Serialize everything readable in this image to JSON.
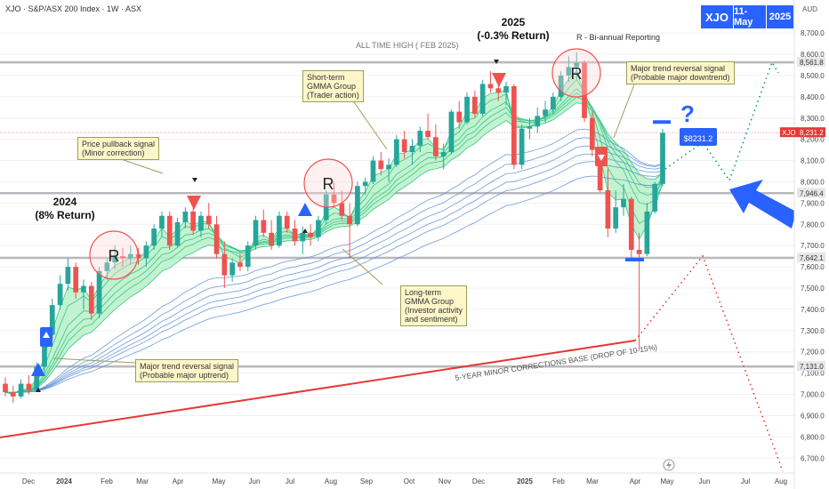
{
  "header": {
    "title": "XJO · S&P/ASX 200 Index · 1W · ASX",
    "currency": "AUD",
    "badges": [
      "XJO",
      "11-May",
      "2025"
    ],
    "badge_color": "#2962ff"
  },
  "chart_data": {
    "type": "candlestick",
    "y_ticks": [
      6700,
      6800,
      6900,
      7000,
      7100,
      7200,
      7300,
      7400,
      7500,
      7600,
      7700,
      7800,
      7900,
      8000,
      8100,
      8200,
      8300,
      8400,
      8500,
      8600,
      8700
    ],
    "y_range": [
      6630,
      8780
    ],
    "x_ticks": [
      "Dec",
      "2024",
      "Feb",
      "Mar",
      "Apr",
      "May",
      "Jun",
      "Jul",
      "Aug",
      "Sep",
      "Oct",
      "Nov",
      "Dec",
      "2025",
      "Feb",
      "Mar",
      "Apr",
      "May",
      "Jun",
      "Jul",
      "Aug"
    ],
    "level_lines": [
      {
        "label": "8,561.8",
        "value": 8561.8,
        "name": "all-time-high"
      },
      {
        "label": "7,946.4",
        "value": 7946.4,
        "name": "support-1"
      },
      {
        "label": "7,642.1",
        "value": 7642.1,
        "name": "support-2"
      },
      {
        "label": "7,131.0",
        "value": 7131.0,
        "name": "corrections-base"
      }
    ],
    "current_price_label": "8,231.2",
    "current_price": 8231.2,
    "current_ticker": "XJO",
    "projection_marker": "$8231.2",
    "colors": {
      "up": "#26a69a",
      "down": "#ef5350",
      "short_gmma": "#26c281",
      "long_gmma": "#5c8fd6",
      "base_line": "#e53935"
    },
    "candles": [
      [
        7050,
        7080,
        6990,
        7010
      ],
      [
        7010,
        7040,
        6960,
        6990
      ],
      [
        6990,
        7070,
        6980,
        7050
      ],
      [
        7050,
        7090,
        7000,
        7020
      ],
      [
        7020,
        7150,
        7010,
        7130
      ],
      [
        7130,
        7300,
        7100,
        7280
      ],
      [
        7280,
        7450,
        7260,
        7420
      ],
      [
        7420,
        7560,
        7400,
        7520
      ],
      [
        7520,
        7640,
        7490,
        7600
      ],
      [
        7600,
        7620,
        7450,
        7480
      ],
      [
        7480,
        7540,
        7400,
        7510
      ],
      [
        7510,
        7530,
        7350,
        7380
      ],
      [
        7380,
        7600,
        7360,
        7580
      ],
      [
        7580,
        7640,
        7540,
        7620
      ],
      [
        7620,
        7700,
        7590,
        7650
      ],
      [
        7650,
        7690,
        7600,
        7640
      ],
      [
        7640,
        7700,
        7610,
        7660
      ],
      [
        7660,
        7690,
        7610,
        7640
      ],
      [
        7640,
        7720,
        7600,
        7700
      ],
      [
        7700,
        7800,
        7680,
        7780
      ],
      [
        7780,
        7860,
        7740,
        7840
      ],
      [
        7840,
        7860,
        7680,
        7700
      ],
      [
        7700,
        7830,
        7690,
        7810
      ],
      [
        7810,
        7880,
        7780,
        7860
      ],
      [
        7860,
        7880,
        7750,
        7770
      ],
      [
        7770,
        7860,
        7740,
        7840
      ],
      [
        7840,
        7900,
        7780,
        7800
      ],
      [
        7800,
        7840,
        7640,
        7660
      ],
      [
        7660,
        7720,
        7500,
        7560
      ],
      [
        7560,
        7640,
        7530,
        7620
      ],
      [
        7620,
        7660,
        7580,
        7600
      ],
      [
        7600,
        7720,
        7580,
        7700
      ],
      [
        7700,
        7840,
        7680,
        7820
      ],
      [
        7820,
        7870,
        7740,
        7760
      ],
      [
        7760,
        7820,
        7680,
        7700
      ],
      [
        7700,
        7860,
        7690,
        7840
      ],
      [
        7840,
        7860,
        7760,
        7780
      ],
      [
        7780,
        7820,
        7700,
        7720
      ],
      [
        7720,
        7790,
        7660,
        7760
      ],
      [
        7760,
        7800,
        7700,
        7740
      ],
      [
        7740,
        7840,
        7720,
        7820
      ],
      [
        7820,
        7960,
        7800,
        7940
      ],
      [
        7940,
        8000,
        7880,
        7900
      ],
      [
        7900,
        7960,
        7820,
        7840
      ],
      [
        7840,
        7900,
        7640,
        7800
      ],
      [
        7800,
        8000,
        7790,
        7980
      ],
      [
        7980,
        8020,
        7940,
        8000
      ],
      [
        8000,
        8120,
        7990,
        8100
      ],
      [
        8100,
        8140,
        8030,
        8060
      ],
      [
        8060,
        8110,
        8000,
        8080
      ],
      [
        8080,
        8220,
        8070,
        8200
      ],
      [
        8200,
        8240,
        8110,
        8140
      ],
      [
        8140,
        8200,
        8080,
        8170
      ],
      [
        8170,
        8260,
        8140,
        8240
      ],
      [
        8240,
        8320,
        8200,
        8210
      ],
      [
        8210,
        8270,
        8100,
        8120
      ],
      [
        8120,
        8180,
        8060,
        8140
      ],
      [
        8140,
        8340,
        8130,
        8330
      ],
      [
        8330,
        8380,
        8250,
        8280
      ],
      [
        8280,
        8420,
        8270,
        8400
      ],
      [
        8400,
        8430,
        8300,
        8320
      ],
      [
        8320,
        8480,
        8310,
        8460
      ],
      [
        8460,
        8520,
        8420,
        8440
      ],
      [
        8440,
        8480,
        8380,
        8420
      ],
      [
        8420,
        8470,
        8360,
        8450
      ],
      [
        8450,
        8460,
        8060,
        8080
      ],
      [
        8080,
        8270,
        8060,
        8250
      ],
      [
        8250,
        8300,
        8200,
        8260
      ],
      [
        8260,
        8350,
        8230,
        8310
      ],
      [
        8310,
        8380,
        8280,
        8340
      ],
      [
        8340,
        8420,
        8320,
        8400
      ],
      [
        8400,
        8520,
        8380,
        8500
      ],
      [
        8500,
        8590,
        8470,
        8540
      ],
      [
        8540,
        8610,
        8480,
        8560
      ],
      [
        8560,
        8570,
        8280,
        8300
      ],
      [
        8300,
        8330,
        8120,
        8150
      ],
      [
        8150,
        8160,
        7950,
        7960
      ],
      [
        7960,
        8060,
        7740,
        7780
      ],
      [
        7780,
        7960,
        7760,
        7880
      ],
      [
        7880,
        7990,
        7840,
        7920
      ],
      [
        7920,
        7930,
        7640,
        7680
      ],
      [
        7680,
        7760,
        7210,
        7660
      ],
      [
        7660,
        7900,
        7650,
        7860
      ],
      [
        7860,
        8000,
        7850,
        7990
      ],
      [
        7990,
        8250,
        7980,
        8231
      ]
    ],
    "annotations": {
      "ath": "ALL TIME HIGH ( FEB 2025)",
      "reporting": "R - Bi-annual Reporting",
      "base": "5-YEAR MINOR CORRECTIONS BASE (DROP OF 10-15%)",
      "y2024": "2024\n(8% Return)",
      "y2025": "2025\n(-0.3% Return)",
      "pullback": "Price pullback signal\n(Minor correction)",
      "short_gmma": "Short-term\nGMMA Group\n(Trader action)",
      "long_gmma": "Long-term\nGMMA Group\n(Investor activity\nand sentiment)",
      "reversal_up": "Major trend reversal signal\n(Probable major uptrend)",
      "reversal_down": "Major trend reversal signal\n(Probable major downtrend)",
      "question": "?",
      "r": "R"
    }
  }
}
